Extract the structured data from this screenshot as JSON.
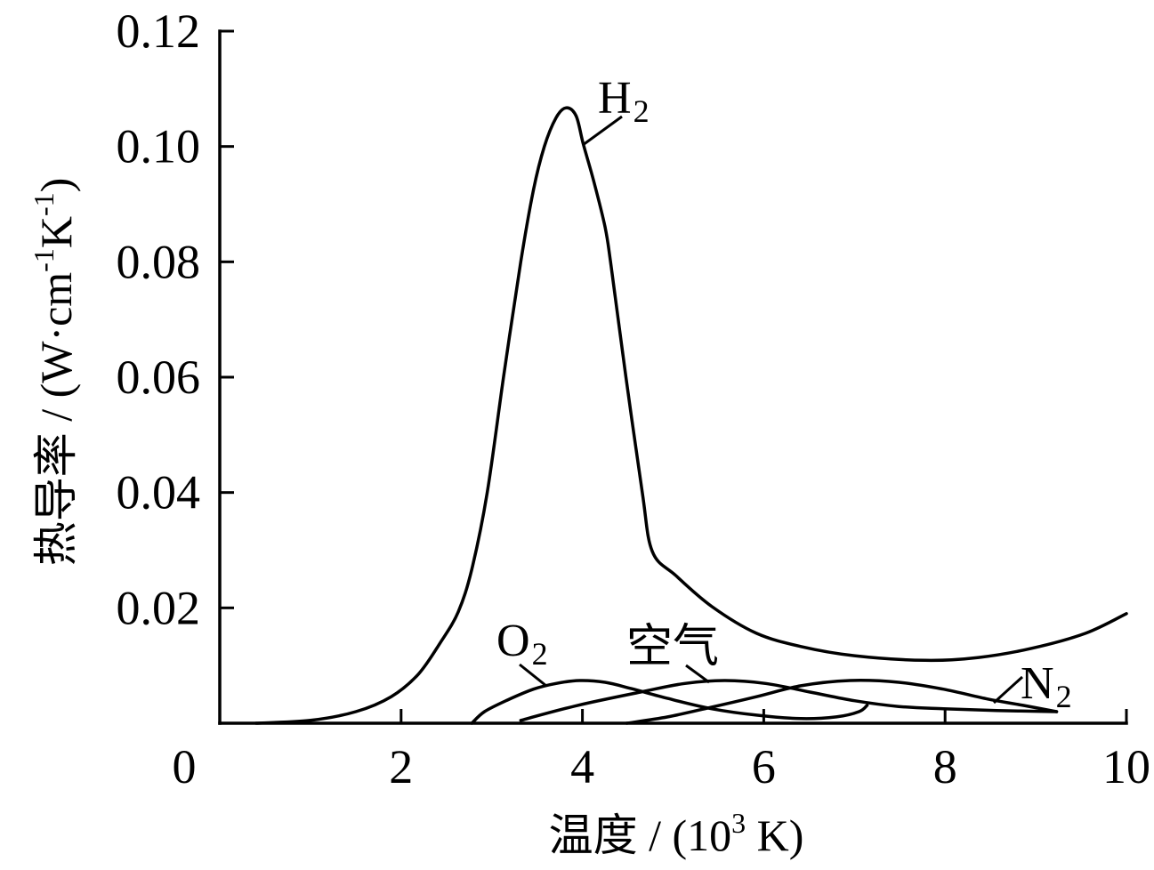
{
  "chart_data": {
    "type": "line",
    "xlabel": [
      {
        "t": "温度 / (10"
      },
      {
        "t": "3",
        "sup": true
      },
      {
        "t": " K)"
      }
    ],
    "ylabel": [
      {
        "t": "热导率 / (W·cm"
      },
      {
        "t": "-1",
        "sup": true
      },
      {
        "t": "K"
      },
      {
        "t": "-1",
        "sup": true
      },
      {
        "t": ")"
      }
    ],
    "xlim": [
      0,
      10
    ],
    "ylim": [
      0,
      0.12
    ],
    "xticks": [
      0,
      2,
      4,
      6,
      8,
      10
    ],
    "xtick_labels": [
      "0",
      "2",
      "4",
      "6",
      "8",
      "10"
    ],
    "yticks": [
      0.02,
      0.04,
      0.06,
      0.08,
      0.1,
      0.12
    ],
    "ytick_labels": [
      "0.02",
      "0.04",
      "0.06",
      "0.08",
      "0.10",
      "0.12"
    ],
    "grid": false,
    "colors": {
      "line": "#000000",
      "background": "#ffffff"
    },
    "series": [
      {
        "name": "H",
        "name_sub": "2",
        "points": [
          [
            0.4,
            0
          ],
          [
            1.0,
            0.0005
          ],
          [
            1.5,
            0.002
          ],
          [
            1.89,
            0.0046
          ],
          [
            2.19,
            0.0085
          ],
          [
            2.43,
            0.0139
          ],
          [
            2.63,
            0.0193
          ],
          [
            2.78,
            0.0267
          ],
          [
            2.95,
            0.04
          ],
          [
            3.13,
            0.06
          ],
          [
            3.32,
            0.08
          ],
          [
            3.46,
            0.0925
          ],
          [
            3.58,
            0.1
          ],
          [
            3.71,
            0.105
          ],
          [
            3.82,
            0.1067
          ],
          [
            3.93,
            0.1053
          ],
          [
            4.01,
            0.1004
          ],
          [
            4.13,
            0.0937
          ],
          [
            4.25,
            0.086
          ],
          [
            4.31,
            0.08
          ],
          [
            4.48,
            0.06
          ],
          [
            4.66,
            0.04
          ],
          [
            4.77,
            0.0298
          ],
          [
            5.03,
            0.0256
          ],
          [
            5.43,
            0.0202
          ],
          [
            5.92,
            0.0156
          ],
          [
            6.41,
            0.0133
          ],
          [
            7.0,
            0.0117
          ],
          [
            7.78,
            0.0109
          ],
          [
            8.37,
            0.0114
          ],
          [
            8.96,
            0.013
          ],
          [
            9.55,
            0.0156
          ],
          [
            10.0,
            0.019
          ]
        ]
      },
      {
        "name": "O",
        "name_sub": "2",
        "points": [
          [
            2.78,
            0
          ],
          [
            2.92,
            0.002
          ],
          [
            3.17,
            0.004
          ],
          [
            3.46,
            0.0059
          ],
          [
            3.71,
            0.0069
          ],
          [
            3.97,
            0.0074
          ],
          [
            4.25,
            0.0071
          ],
          [
            4.54,
            0.006
          ],
          [
            4.94,
            0.0043
          ],
          [
            5.43,
            0.0025
          ],
          [
            5.92,
            0.0014
          ],
          [
            6.41,
            0.0008
          ],
          [
            6.8,
            0.0011
          ],
          [
            7.05,
            0.002
          ],
          [
            7.14,
            0.0031
          ]
        ]
      },
      {
        "name": "空气",
        "points": [
          [
            3.32,
            0.0005
          ],
          [
            3.95,
            0.0031
          ],
          [
            4.64,
            0.0054
          ],
          [
            5.13,
            0.0069
          ],
          [
            5.57,
            0.0074
          ],
          [
            6.02,
            0.0069
          ],
          [
            6.51,
            0.0054
          ],
          [
            7.0,
            0.0039
          ],
          [
            7.49,
            0.0029
          ],
          [
            7.98,
            0.0025
          ],
          [
            8.57,
            0.0022
          ],
          [
            9.23,
            0.002
          ]
        ]
      },
      {
        "name": "N",
        "name_sub": "2",
        "points": [
          [
            4.49,
            0
          ],
          [
            4.94,
            0.0011
          ],
          [
            5.43,
            0.0028
          ],
          [
            5.92,
            0.0046
          ],
          [
            6.41,
            0.0065
          ],
          [
            6.95,
            0.0074
          ],
          [
            7.49,
            0.0071
          ],
          [
            7.98,
            0.0059
          ],
          [
            8.47,
            0.0042
          ],
          [
            8.86,
            0.0031
          ],
          [
            9.23,
            0.002
          ]
        ]
      }
    ]
  }
}
